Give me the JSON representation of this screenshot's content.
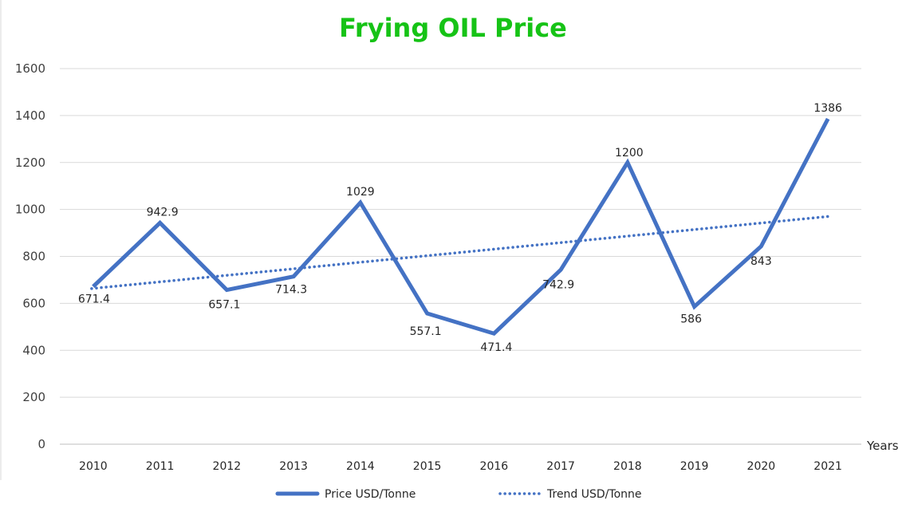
{
  "chart_data": {
    "type": "line",
    "title": "Frying OIL Price",
    "xlabel": "Years",
    "ylabel": "",
    "ylim": [
      0,
      1600
    ],
    "yticks": [
      0,
      200,
      400,
      600,
      800,
      1000,
      1200,
      1400,
      1600
    ],
    "grid": true,
    "legend_position": "bottom",
    "categories": [
      "2010",
      "2011",
      "2012",
      "2013",
      "2014",
      "2015",
      "2016",
      "2017",
      "2018",
      "2019",
      "2020",
      "2021"
    ],
    "series": [
      {
        "name": "Price  USD/Tonne",
        "style": "solid",
        "values": [
          671.4,
          942.9,
          657.1,
          714.3,
          1029,
          557.1,
          471.4,
          742.9,
          1200,
          586,
          843,
          1386
        ],
        "labels": [
          "671.4",
          "942.9",
          "657.1",
          "714.3",
          "1029",
          "557.1",
          "471.4",
          "742.9",
          "1200",
          "586",
          "843",
          "1386"
        ]
      },
      {
        "name": "Trend  USD/Tonne",
        "style": "dotted",
        "start": 663,
        "end": 970
      }
    ]
  },
  "colors": {
    "title": "#16c316",
    "series": "#4472c4",
    "grid": "#d9d9d9",
    "axis": "#bfbfbf"
  }
}
